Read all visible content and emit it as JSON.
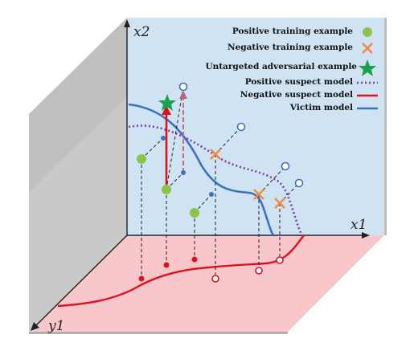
{
  "axes": {
    "x2": "x2",
    "x1": "x1",
    "y1": "y1"
  },
  "legend": [
    {
      "label": "Positive training example",
      "marker": "green-circle",
      "color": "#8cc34a"
    },
    {
      "label": "Negative training example",
      "marker": "orange-cross",
      "color": "#f0883e"
    },
    {
      "label": "Untargeted adversarial example",
      "marker": "green-star",
      "color": "#1aa14e"
    },
    {
      "label": "Positive suspect model",
      "marker": "purple-dotted-line",
      "color": "#7b3fa8"
    },
    {
      "label": "Negative suspect model",
      "marker": "red-line",
      "color": "#e0101c"
    },
    {
      "label": "Victim model",
      "marker": "blue-line",
      "color": "#3a72c0"
    }
  ],
  "colors": {
    "back_wall": "#cfe3f3",
    "floor": "#f8c7cc",
    "side_wall": "#c8c8c8",
    "side_wall_dark": "#a9a9a9"
  }
}
